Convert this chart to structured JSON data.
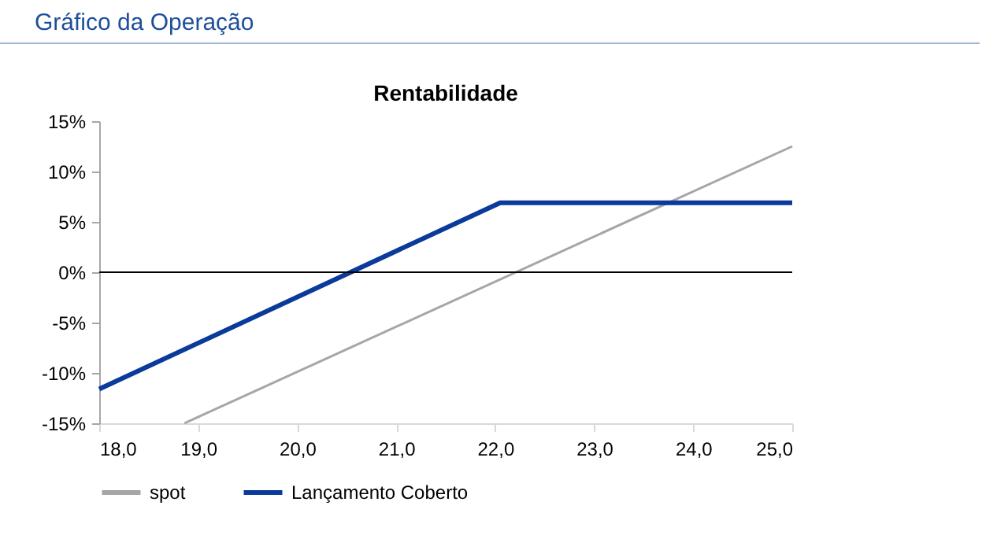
{
  "chart_data": {
    "type": "line",
    "title": "Gráfico da Operação",
    "subtitle": "Rentabilidade",
    "series": [
      {
        "name": "spot",
        "color": "#a6a6a6",
        "x": [
          18.86,
          25
        ],
        "values": [
          -15,
          12.5
        ]
      },
      {
        "name": "Lançamento Coberto",
        "color": "#0a3a9a",
        "x": [
          18,
          22.05,
          25
        ],
        "values": [
          -11.6,
          6.9,
          6.9
        ]
      }
    ],
    "xlim": [
      18,
      25
    ],
    "xticks": [
      {
        "value": 18,
        "label": "18,0"
      },
      {
        "value": 19,
        "label": "19,0"
      },
      {
        "value": 20,
        "label": "20,0"
      },
      {
        "value": 21,
        "label": "21,0"
      },
      {
        "value": 22,
        "label": "22,0"
      },
      {
        "value": 23,
        "label": "23,0"
      },
      {
        "value": 24,
        "label": "24,0"
      },
      {
        "value": 25,
        "label": "25,0"
      }
    ],
    "ylim": [
      -15,
      15
    ],
    "yticks": [
      {
        "value": -15,
        "label": "-15%"
      },
      {
        "value": -10,
        "label": "-10%"
      },
      {
        "value": -5,
        "label": "-5%"
      },
      {
        "value": 0,
        "label": "0%"
      },
      {
        "value": 5,
        "label": "5%"
      },
      {
        "value": 10,
        "label": "10%"
      },
      {
        "value": 15,
        "label": "15%"
      }
    ],
    "ref_lines": [
      {
        "axis": "y",
        "value": 0,
        "color": "#000000"
      }
    ],
    "legend": "bottom",
    "grid": false,
    "marker": "none",
    "line_style": "solid"
  }
}
